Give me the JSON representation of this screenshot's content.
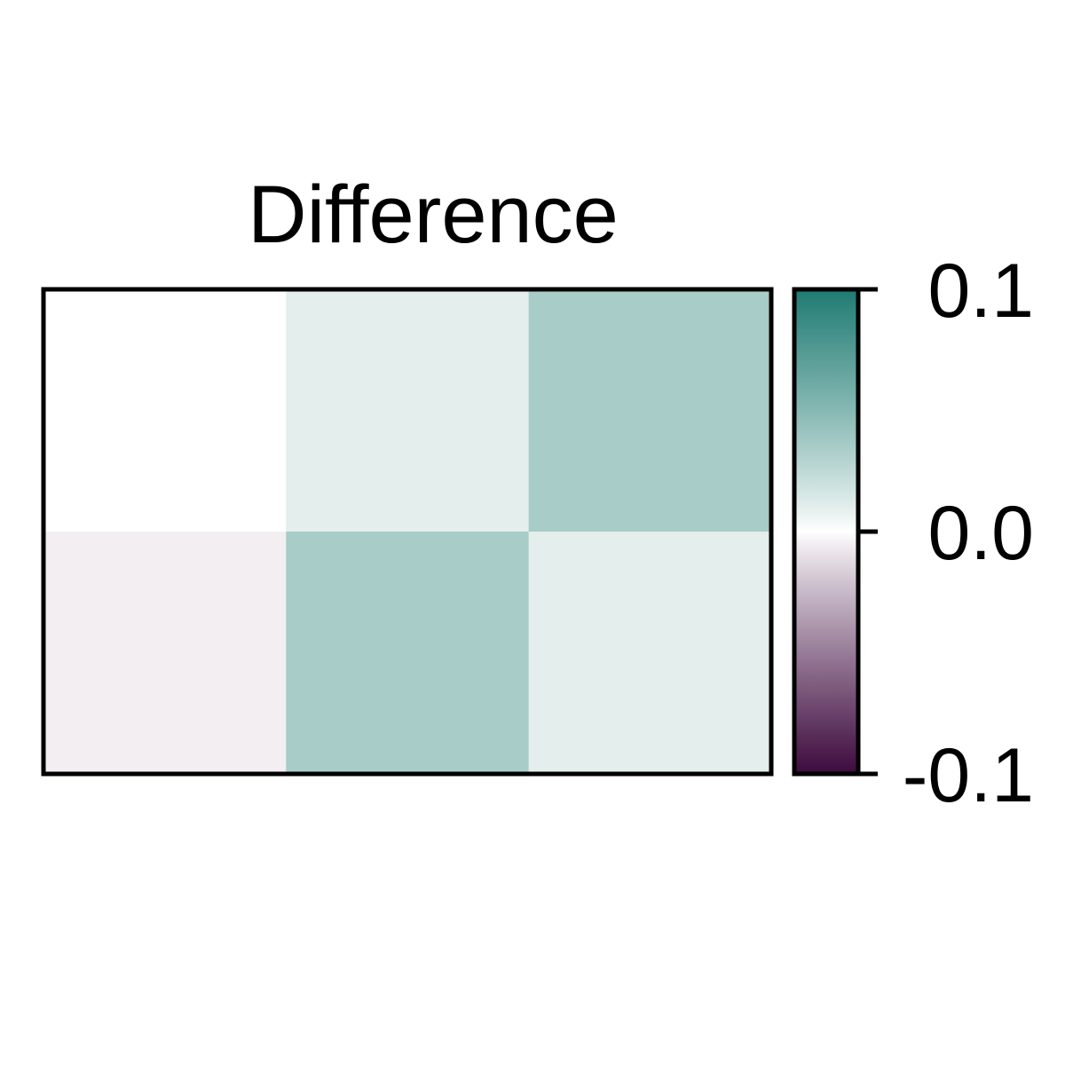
{
  "chart_data": {
    "type": "heatmap",
    "title": "Difference",
    "rows": 2,
    "cols": 3,
    "values": [
      [
        0.0,
        0.01,
        0.035
      ],
      [
        -0.005,
        0.035,
        0.01
      ]
    ],
    "colorbar": {
      "min": -0.1,
      "max": 0.1,
      "tick_values": [
        0.1,
        0.0,
        -0.1
      ],
      "tick_labels": [
        "0.1",
        "0.0",
        "-0.1"
      ],
      "colors": {
        "low": "#3d0a3e",
        "mid": "#ffffff",
        "high": "#1f7b72"
      }
    },
    "xlabel": "",
    "ylabel": ""
  }
}
